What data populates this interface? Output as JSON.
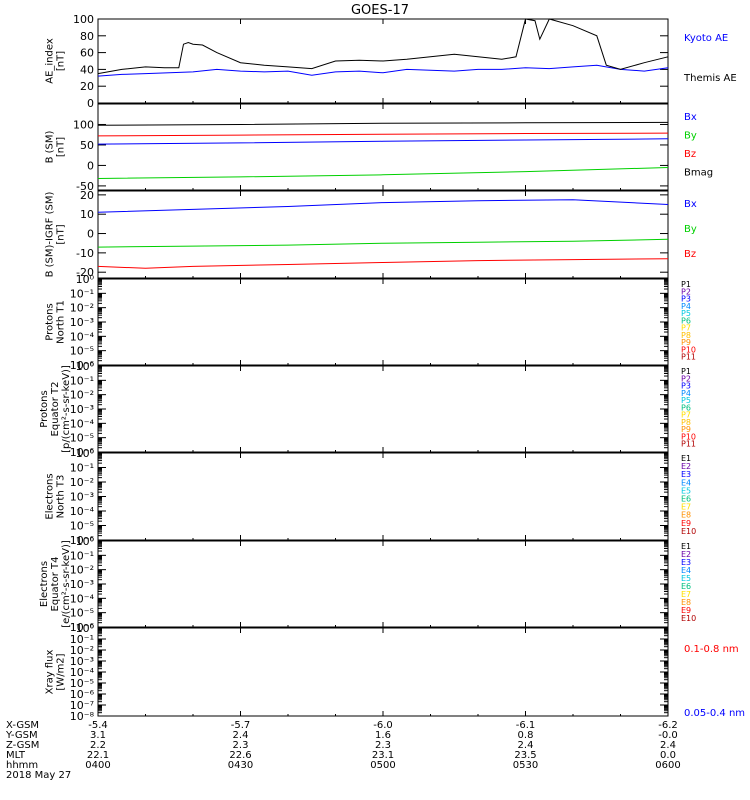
{
  "title": "GOES-17",
  "chart_data": [
    {
      "type": "line",
      "ylabel": [
        "AE_index",
        "[nT]"
      ],
      "ylim": [
        0,
        100
      ],
      "y_ticks": [
        0,
        20,
        40,
        60,
        80,
        100
      ],
      "y_tick_labels": [
        "0",
        "20",
        "40",
        "60",
        "80",
        "100"
      ],
      "series": [
        {
          "name": "Kyoto AE",
          "color": "#0000ff",
          "x": [
            0,
            5,
            10,
            15,
            20,
            25,
            30,
            35,
            40,
            45,
            50,
            55,
            60,
            65,
            70,
            75,
            80,
            85,
            90,
            95,
            100,
            105,
            110,
            115,
            120
          ],
          "y": [
            32,
            34,
            35,
            36,
            37,
            40,
            38,
            37,
            38,
            33,
            37,
            38,
            36,
            40,
            39,
            38,
            40,
            40,
            42,
            41,
            43,
            45,
            40,
            38,
            42
          ]
        },
        {
          "name": "Themis AE",
          "color": "#000000",
          "x": [
            0,
            5,
            10,
            14,
            17,
            18,
            19,
            20,
            22,
            25,
            30,
            35,
            40,
            45,
            50,
            55,
            60,
            65,
            70,
            75,
            80,
            85,
            88,
            90,
            92,
            93,
            95,
            100,
            105,
            107,
            110,
            115,
            120
          ],
          "y": [
            35,
            40,
            43,
            42,
            42,
            70,
            72,
            70,
            69,
            60,
            48,
            45,
            43,
            41,
            50,
            51,
            50,
            52,
            55,
            58,
            55,
            52,
            55,
            100,
            98,
            76,
            100,
            92,
            80,
            45,
            40,
            48,
            55
          ]
        }
      ]
    },
    {
      "type": "line",
      "ylabel": [
        "B (SM)",
        "[nT]"
      ],
      "ylim": [
        -60,
        150
      ],
      "y_ticks": [
        -50,
        0,
        50,
        100
      ],
      "y_tick_labels": [
        "-50",
        "0",
        "50",
        "100"
      ],
      "series": [
        {
          "name": "Bx",
          "color": "#0000ff",
          "x": [
            0,
            30,
            60,
            90,
            120
          ],
          "y": [
            52,
            55,
            59,
            62,
            65
          ]
        },
        {
          "name": "By",
          "color": "#00d000",
          "x": [
            0,
            30,
            60,
            90,
            120
          ],
          "y": [
            -32,
            -28,
            -23,
            -15,
            -5
          ]
        },
        {
          "name": "Bz",
          "color": "#ff0000",
          "x": [
            0,
            30,
            60,
            90,
            120
          ],
          "y": [
            72,
            74,
            76,
            78,
            79
          ]
        },
        {
          "name": "Bmag",
          "color": "#000000",
          "x": [
            0,
            30,
            60,
            90,
            120
          ],
          "y": [
            98,
            100,
            103,
            104,
            105
          ]
        }
      ]
    },
    {
      "type": "line",
      "ylabel": [
        "B (SM)-IGRF (SM)",
        "[nT]"
      ],
      "ylim": [
        -23,
        22
      ],
      "y_ticks": [
        -20,
        -10,
        0,
        10,
        20
      ],
      "y_tick_labels": [
        "-20",
        "-10",
        "0",
        "10",
        "20"
      ],
      "series": [
        {
          "name": "Bx",
          "color": "#0000ff",
          "x": [
            0,
            20,
            40,
            60,
            80,
            100,
            120
          ],
          "y": [
            11,
            12.5,
            14,
            16,
            17,
            17.5,
            15
          ]
        },
        {
          "name": "By",
          "color": "#00d000",
          "x": [
            0,
            20,
            40,
            60,
            80,
            100,
            120
          ],
          "y": [
            -7,
            -6.5,
            -6,
            -5,
            -4.5,
            -4,
            -3
          ]
        },
        {
          "name": "Bz",
          "color": "#ff0000",
          "x": [
            0,
            10,
            20,
            40,
            60,
            80,
            100,
            120
          ],
          "y": [
            -17,
            -18,
            -17,
            -16,
            -15,
            -14,
            -13.5,
            -13
          ]
        }
      ]
    },
    {
      "type": "line",
      "ylabel": [
        "Protons",
        "North T1"
      ],
      "y_scale": "log",
      "ylim": [
        1e-06,
        1
      ],
      "y_ticks": [
        0,
        -1,
        -2,
        -3,
        -4,
        -5,
        -6
      ],
      "y_tick_labels": [
        "10⁰",
        "10⁻¹",
        "10⁻²",
        "10⁻³",
        "10⁻⁴",
        "10⁻⁵",
        "10⁻⁶"
      ],
      "legend": [
        {
          "label": "P1",
          "color": "#000000"
        },
        {
          "label": "P2",
          "color": "#6a00a8"
        },
        {
          "label": "P3",
          "color": "#0000ff"
        },
        {
          "label": "P4",
          "color": "#0088ff"
        },
        {
          "label": "P5",
          "color": "#00c8e0"
        },
        {
          "label": "P6",
          "color": "#00c080"
        },
        {
          "label": "P7",
          "color": "#ffe000"
        },
        {
          "label": "P8",
          "color": "#ffc000"
        },
        {
          "label": "P9",
          "color": "#ff9000"
        },
        {
          "label": "P10",
          "color": "#ff0000"
        },
        {
          "label": "P11",
          "color": "#b00000"
        }
      ]
    },
    {
      "type": "line",
      "ylabel": [
        "Protons",
        "Equator T2",
        "[p/(cm²-s-sr-keV)]"
      ],
      "y_scale": "log",
      "ylim": [
        1e-06,
        1
      ],
      "y_ticks": [
        0,
        -1,
        -2,
        -3,
        -4,
        -5,
        -6
      ],
      "y_tick_labels": [
        "10⁰",
        "10⁻¹",
        "10⁻²",
        "10⁻³",
        "10⁻⁴",
        "10⁻⁵",
        "10⁻⁶"
      ],
      "legend": [
        {
          "label": "P1",
          "color": "#000000"
        },
        {
          "label": "P2",
          "color": "#6a00a8"
        },
        {
          "label": "P3",
          "color": "#0000ff"
        },
        {
          "label": "P4",
          "color": "#0088ff"
        },
        {
          "label": "P5",
          "color": "#00c8e0"
        },
        {
          "label": "P6",
          "color": "#00c080"
        },
        {
          "label": "P7",
          "color": "#ffe000"
        },
        {
          "label": "P8",
          "color": "#ffc000"
        },
        {
          "label": "P9",
          "color": "#ff9000"
        },
        {
          "label": "P10",
          "color": "#ff0000"
        },
        {
          "label": "P11",
          "color": "#b00000"
        }
      ]
    },
    {
      "type": "line",
      "ylabel": [
        "Electrons",
        "North T3"
      ],
      "y_scale": "log",
      "ylim": [
        1e-06,
        1
      ],
      "y_ticks": [
        0,
        -1,
        -2,
        -3,
        -4,
        -5,
        -6
      ],
      "y_tick_labels": [
        "10⁰",
        "10⁻¹",
        "10⁻²",
        "10⁻³",
        "10⁻⁴",
        "10⁻⁵",
        "10⁻⁶"
      ],
      "legend": [
        {
          "label": "E1",
          "color": "#000000"
        },
        {
          "label": "E2",
          "color": "#6a00a8"
        },
        {
          "label": "E3",
          "color": "#0000ff"
        },
        {
          "label": "E4",
          "color": "#0088ff"
        },
        {
          "label": "E5",
          "color": "#00c8e0"
        },
        {
          "label": "E6",
          "color": "#00c080"
        },
        {
          "label": "E7",
          "color": "#ffe000"
        },
        {
          "label": "E8",
          "color": "#ff9000"
        },
        {
          "label": "E9",
          "color": "#ff0000"
        },
        {
          "label": "E10",
          "color": "#b00000"
        }
      ]
    },
    {
      "type": "line",
      "ylabel": [
        "Electrons",
        "Equator T4",
        "[e/(cm²-s-sr-keV)]"
      ],
      "y_scale": "log",
      "ylim": [
        1e-06,
        1
      ],
      "y_ticks": [
        0,
        -1,
        -2,
        -3,
        -4,
        -5,
        -6
      ],
      "y_tick_labels": [
        "10⁰",
        "10⁻¹",
        "10⁻²",
        "10⁻³",
        "10⁻⁴",
        "10⁻⁵",
        "10⁻⁶"
      ],
      "legend": [
        {
          "label": "E1",
          "color": "#000000"
        },
        {
          "label": "E2",
          "color": "#6a00a8"
        },
        {
          "label": "E3",
          "color": "#0000ff"
        },
        {
          "label": "E4",
          "color": "#0088ff"
        },
        {
          "label": "E5",
          "color": "#00c8e0"
        },
        {
          "label": "E6",
          "color": "#00c080"
        },
        {
          "label": "E7",
          "color": "#ffe000"
        },
        {
          "label": "E8",
          "color": "#ff9000"
        },
        {
          "label": "E9",
          "color": "#ff0000"
        },
        {
          "label": "E10",
          "color": "#b00000"
        }
      ]
    },
    {
      "type": "line",
      "ylabel": [
        "Xray flux",
        "[W/m2]"
      ],
      "y_scale": "log",
      "ylim": [
        1e-08,
        1
      ],
      "y_ticks": [
        0,
        -1,
        -2,
        -3,
        -4,
        -5,
        -6,
        -7,
        -8
      ],
      "y_tick_labels": [
        "10⁰",
        "10⁻¹",
        "10⁻²",
        "10⁻³",
        "10⁻⁴",
        "10⁻⁵",
        "10⁻⁶",
        "10⁻⁷",
        "10⁻⁸"
      ],
      "legend": [
        {
          "label": "0.1-0.8 nm",
          "color": "#ff0000"
        },
        {
          "label": "0.05-0.4 nm",
          "color": "#0000ff"
        }
      ]
    }
  ],
  "x_axis": {
    "x_ticks": [
      0,
      30,
      60,
      90,
      120
    ],
    "rows": [
      {
        "label": "X-GSM",
        "values": [
          "-5.4",
          "-5.7",
          "-6.0",
          "-6.1",
          "-6.2"
        ]
      },
      {
        "label": "Y-GSM",
        "values": [
          "3.1",
          "2.4",
          "1.6",
          "0.8",
          "-0.0"
        ]
      },
      {
        "label": "Z-GSM",
        "values": [
          "2.2",
          "2.3",
          "2.3",
          "2.4",
          "2.4"
        ]
      },
      {
        "label": "MLT",
        "values": [
          "22.1",
          "22.6",
          "23.1",
          "23.5",
          "0.0"
        ]
      },
      {
        "label": "hhmm",
        "values": [
          "0400",
          "0430",
          "0500",
          "0530",
          "0600"
        ]
      }
    ],
    "date": "2018 May 27"
  }
}
